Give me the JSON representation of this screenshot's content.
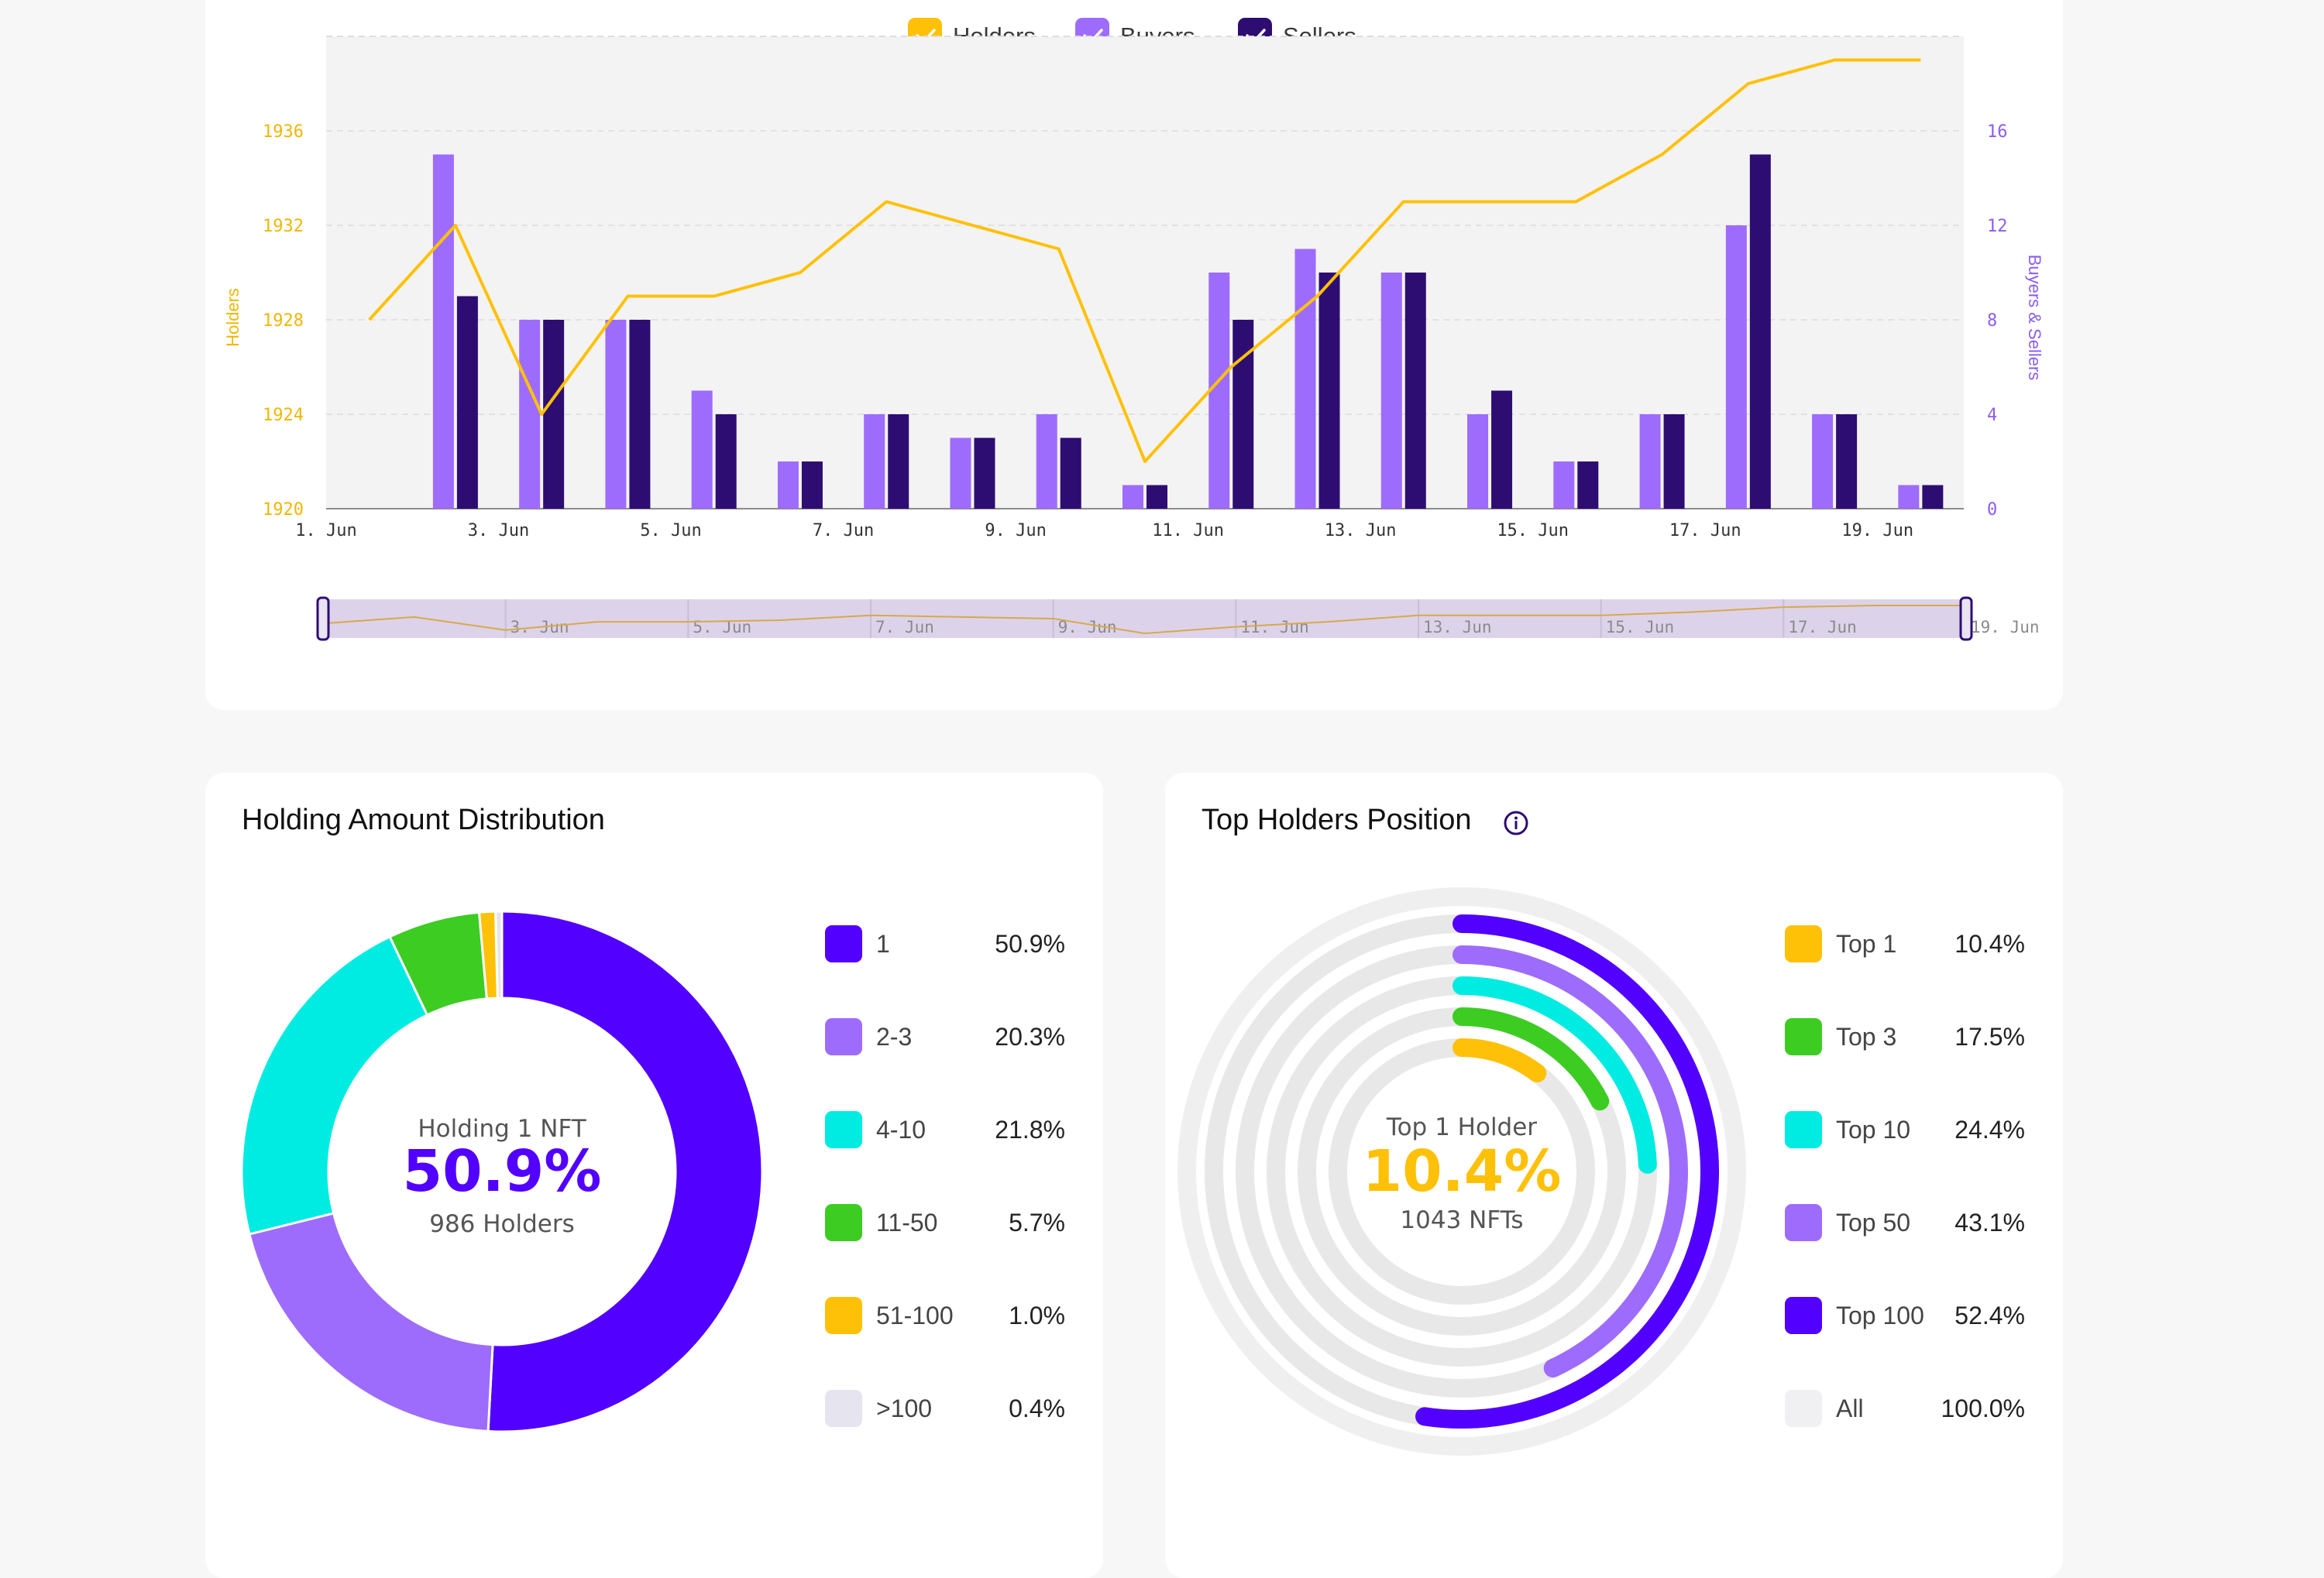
{
  "legend": {
    "items": [
      {
        "label": "Holders",
        "color": "#ffc107"
      },
      {
        "label": "Buyers",
        "color": "#9e6cfc"
      },
      {
        "label": "Sellers",
        "color": "#2e0d72"
      }
    ]
  },
  "chart_data": [
    {
      "type": "bar",
      "categories": [
        "1. Jun",
        "2. Jun",
        "3. Jun",
        "4. Jun",
        "5. Jun",
        "6. Jun",
        "7. Jun",
        "8. Jun",
        "9. Jun",
        "10. Jun",
        "11. Jun",
        "12. Jun",
        "13. Jun",
        "14. Jun",
        "15. Jun",
        "16. Jun",
        "17. Jun",
        "18. Jun",
        "19. Jun"
      ],
      "x_tick_labels": [
        "1. Jun",
        "3. Jun",
        "5. Jun",
        "7. Jun",
        "9. Jun",
        "11. Jun",
        "13. Jun",
        "15. Jun",
        "17. Jun",
        "19. Jun"
      ],
      "series": [
        {
          "name": "Buyers",
          "kind": "bar",
          "axis": "right",
          "values": [
            null,
            15,
            8,
            8,
            5,
            2,
            4,
            3,
            4,
            1,
            10,
            11,
            10,
            4,
            2,
            4,
            12,
            4,
            1
          ]
        },
        {
          "name": "Sellers",
          "kind": "bar",
          "axis": "right",
          "values": [
            null,
            9,
            8,
            8,
            4,
            2,
            4,
            3,
            3,
            1,
            8,
            10,
            10,
            5,
            2,
            4,
            15,
            4,
            1
          ]
        },
        {
          "name": "Holders",
          "kind": "line",
          "axis": "left",
          "values": [
            1928,
            1932,
            1924,
            1929,
            1929,
            1930,
            1933,
            1932,
            1931,
            1922,
            1926,
            1929,
            1933,
            1933,
            1933,
            1935,
            1938,
            1939,
            1939
          ]
        }
      ],
      "y_left": {
        "label": "Holders",
        "ticks": [
          1920,
          1924,
          1928,
          1932,
          1936
        ],
        "min": 1920,
        "max": 1940
      },
      "y_right": {
        "label": "Buyers & Sellers",
        "ticks": [
          0,
          4,
          8,
          12,
          16
        ],
        "min": 0,
        "max": 20
      },
      "navigator_labels": [
        "3. Jun",
        "5. Jun",
        "7. Jun",
        "9. Jun",
        "11. Jun",
        "13. Jun",
        "15. Jun",
        "17. Jun",
        "19. Jun"
      ],
      "grid": true
    },
    {
      "type": "pie",
      "title": "Holding Amount Distribution",
      "center": {
        "label": "Holding 1 NFT",
        "value": "50.9%",
        "sub": "986 Holders"
      },
      "slices": [
        {
          "label": "1",
          "value": 50.9,
          "display": "50.9%",
          "color": "#5200ff"
        },
        {
          "label": "2-3",
          "value": 20.3,
          "display": "20.3%",
          "color": "#9e6cfc"
        },
        {
          "label": "4-10",
          "value": 21.8,
          "display": "21.8%",
          "color": "#00ece2"
        },
        {
          "label": "11-50",
          "value": 5.7,
          "display": "5.7%",
          "color": "#3dcc22"
        },
        {
          "label": "51-100",
          "value": 1.0,
          "display": "1.0%",
          "color": "#ffc107"
        },
        {
          "label": ">100",
          "value": 0.4,
          "display": "0.4%",
          "color": "#e6e4ee"
        }
      ]
    },
    {
      "type": "radial-bar",
      "title": "Top Holders Position",
      "center": {
        "label": "Top 1 Holder",
        "value": "10.4%",
        "sub": "1043 NFTs"
      },
      "items": [
        {
          "label": "Top 1",
          "value": 10.4,
          "display": "10.4%",
          "color": "#ffc107"
        },
        {
          "label": "Top 3",
          "value": 17.5,
          "display": "17.5%",
          "color": "#3dcc22"
        },
        {
          "label": "Top 10",
          "value": 24.4,
          "display": "24.4%",
          "color": "#00ece2"
        },
        {
          "label": "Top 50",
          "value": 43.1,
          "display": "43.1%",
          "color": "#9e6cfc"
        },
        {
          "label": "Top 100",
          "value": 52.4,
          "display": "52.4%",
          "color": "#5200ff"
        },
        {
          "label": "All",
          "value": 100.0,
          "display": "100.0%",
          "color": "#f0f0f2"
        }
      ]
    }
  ]
}
